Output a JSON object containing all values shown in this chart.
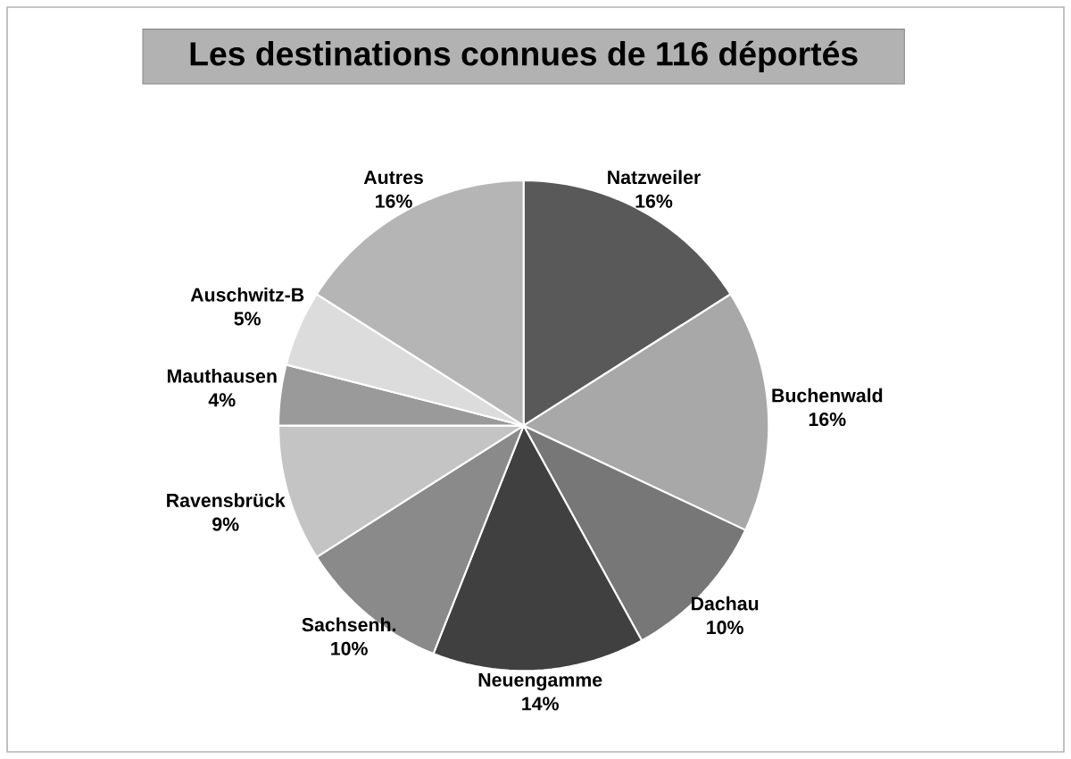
{
  "chart_data": {
    "type": "pie",
    "title": "Les destinations connues de 116 déportés",
    "categories": [
      "Natzweiler",
      "Buchenwald",
      "Dachau",
      "Neuengamme",
      "Sachsenh.",
      "Ravensbrück",
      "Mauthausen",
      "Auschwitz-B",
      "Autres"
    ],
    "values": [
      16,
      16,
      10,
      14,
      10,
      9,
      4,
      5,
      16
    ],
    "value_labels": [
      "16%",
      "16%",
      "10%",
      "14%",
      "10%",
      "9%",
      "4%",
      "5%",
      "16%"
    ],
    "colors": [
      "#595959",
      "#a8a8a8",
      "#777777",
      "#404040",
      "#8a8a8a",
      "#c4c4c4",
      "#9a9a9a",
      "#dcdcdc",
      "#b5b5b5"
    ]
  }
}
